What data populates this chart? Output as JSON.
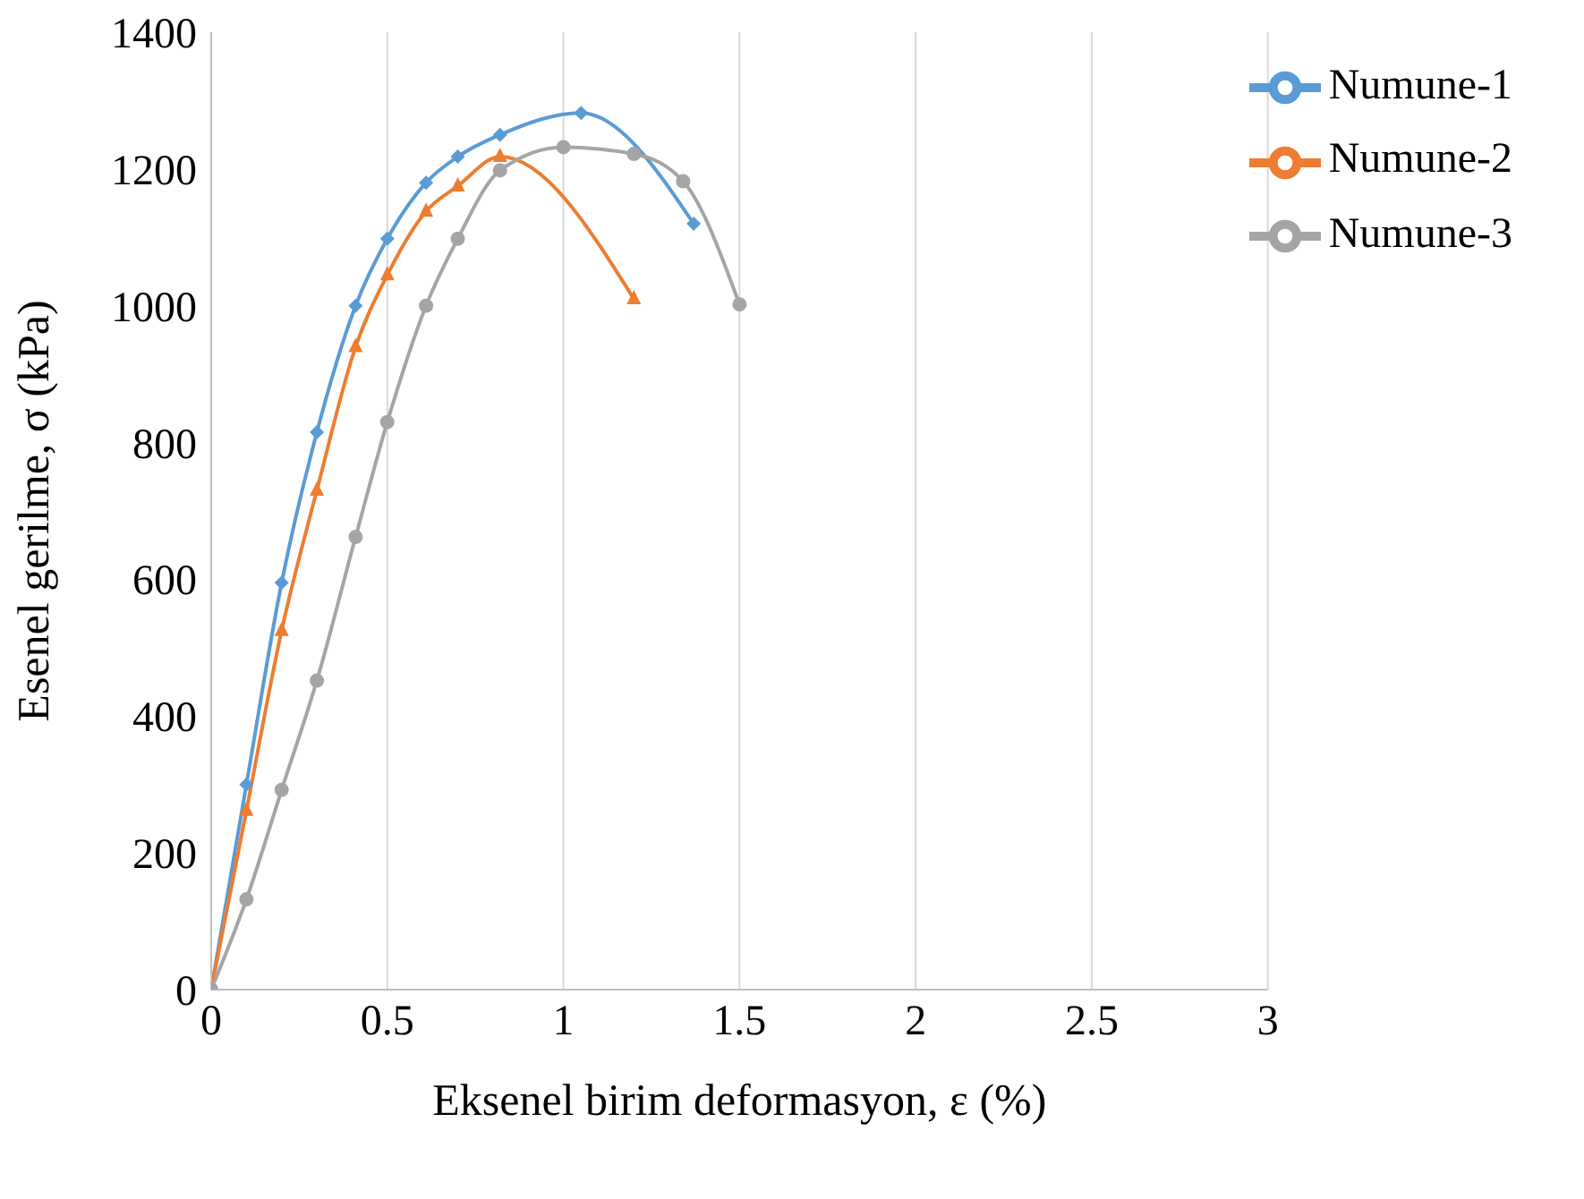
{
  "chart_data": {
    "type": "line",
    "xlabel": "Eksenel birim deformasyon, ε (%)",
    "ylabel": "Esenel gerilme, σ (kPa)",
    "xlim": [
      0,
      3
    ],
    "xticks": [
      0,
      0.5,
      1,
      1.5,
      2,
      2.5,
      3
    ],
    "ylim": [
      0,
      1400
    ],
    "yticks": [
      0,
      200,
      400,
      600,
      800,
      1000,
      1200,
      1400
    ],
    "grid": "x",
    "legend": "top right",
    "series": [
      {
        "name": "Numune-1",
        "color": "#5b9bd5",
        "marker": "diamond",
        "x": [
          0,
          0.1,
          0.2,
          0.3,
          0.41,
          0.5,
          0.61,
          0.7,
          0.82,
          1.05,
          1.37
        ],
        "values": [
          0,
          300,
          595,
          815,
          1000,
          1098,
          1180,
          1218,
          1250,
          1282,
          1120
        ]
      },
      {
        "name": "Numune-2",
        "color": "#ed7d31",
        "marker": "triangle",
        "x": [
          0,
          0.1,
          0.2,
          0.3,
          0.41,
          0.5,
          0.61,
          0.7,
          0.82,
          1.2
        ],
        "values": [
          0,
          262,
          525,
          730,
          940,
          1045,
          1138,
          1175,
          1218,
          1010
        ]
      },
      {
        "name": "Numune-3",
        "color": "#a5a5a5",
        "marker": "circle",
        "x": [
          0,
          0.1,
          0.2,
          0.3,
          0.41,
          0.5,
          0.61,
          0.7,
          0.82,
          1.0,
          1.2,
          1.34,
          1.5
        ],
        "values": [
          0,
          132,
          292,
          452,
          662,
          830,
          1000,
          1098,
          1198,
          1232,
          1222,
          1182,
          1002
        ]
      }
    ]
  }
}
